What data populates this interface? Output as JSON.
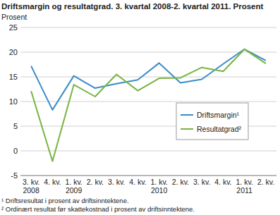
{
  "chart_data": {
    "type": "line",
    "title": "Driftsmargin og resultatgrad. 3. kvartal 2008-2. kvartal 2011. Prosent",
    "ylabel": "Prosent",
    "categories": [
      "3. kv. 2008",
      "4. kv.",
      "1. kv. 2009",
      "2. kv.",
      "3. kv.",
      "4. kv.",
      "1. kv. 2010",
      "2. kv.",
      "3. kv.",
      "4. kv.",
      "1. kv. 2011",
      "2. kv."
    ],
    "series": [
      {
        "name": "Driftsmargin¹",
        "color": "#3a8cc6",
        "values": [
          17.2,
          8.3,
          15.2,
          12.7,
          13.6,
          14.4,
          17.8,
          13.8,
          14.5,
          17.6,
          20.6,
          18.3
        ]
      },
      {
        "name": "Resultatgrad²",
        "color": "#76b442",
        "values": [
          12.1,
          -2.1,
          13.4,
          11.0,
          15.5,
          12.2,
          14.7,
          14.8,
          16.9,
          16.1,
          20.6,
          17.7
        ]
      }
    ],
    "ylim": [
      -5,
      25
    ],
    "yticks": [
      -5,
      0,
      5,
      10,
      15,
      20,
      25
    ],
    "grid": true,
    "legend": "right",
    "footnotes": [
      "¹ Driftsresultat i prosent av driftsinntektene.",
      "² Ordinært resultat før skattekostnad i prosent av driftsinntektene."
    ]
  }
}
